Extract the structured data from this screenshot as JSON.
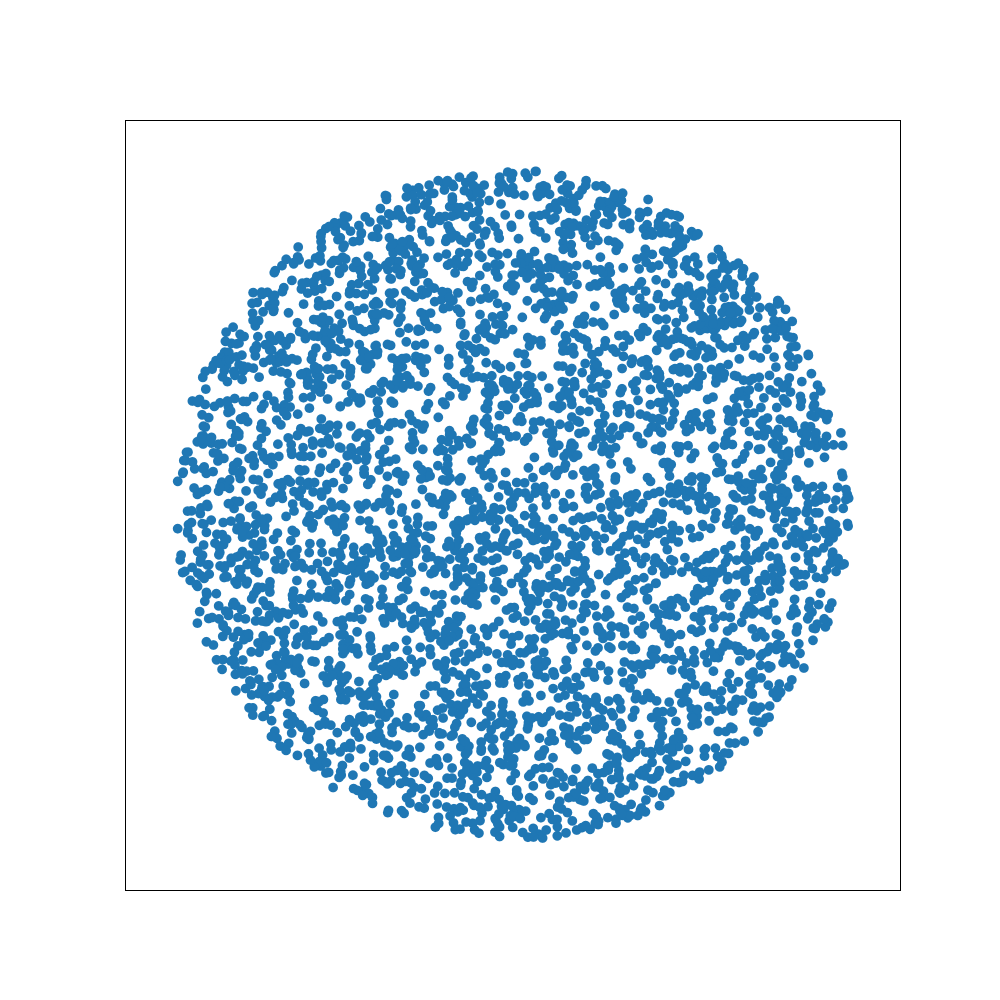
{
  "chart_data": {
    "type": "scatter",
    "title": "",
    "xlabel": "",
    "ylabel": "",
    "xlim": [
      -1.15,
      1.15
    ],
    "ylim": [
      -1.15,
      1.15
    ],
    "axes_visible": false,
    "ticks_visible": false,
    "grid": false,
    "legend": "none",
    "marker": "circle",
    "point_color": "#1f77b4",
    "series": [
      {
        "point_count": 4000,
        "distribution": "uniform disk",
        "center": [
          0,
          0
        ],
        "radius": 1.0,
        "x": [
          -0.84,
          -0.71,
          -0.62,
          -0.4,
          -0.12,
          0.1,
          0.33,
          0.55,
          0.78,
          0.9,
          0.86,
          0.7,
          0.48,
          0.2,
          -0.05,
          -0.3,
          -0.52,
          -0.7,
          -0.92,
          -0.5,
          0.0,
          0.35,
          -0.2,
          0.62,
          -0.65
        ],
        "y": [
          0.05,
          0.4,
          0.6,
          0.8,
          0.92,
          0.95,
          0.88,
          0.72,
          0.5,
          0.2,
          -0.1,
          -0.45,
          -0.7,
          -0.88,
          -0.94,
          -0.86,
          -0.68,
          -0.45,
          -0.15,
          0.1,
          0.0,
          -0.25,
          0.3,
          0.1,
          -0.3
        ]
      }
    ]
  }
}
